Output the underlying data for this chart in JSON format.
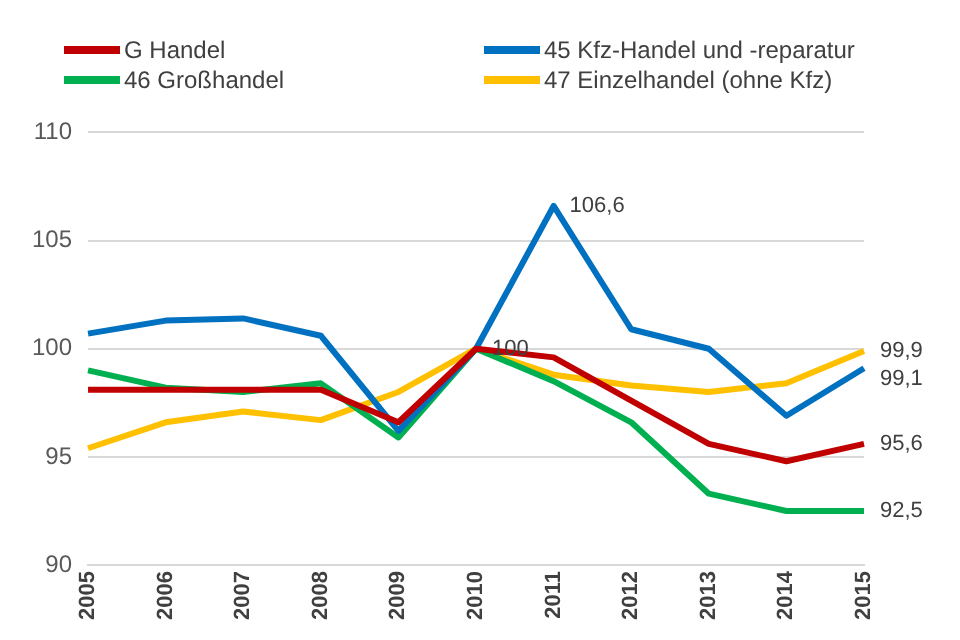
{
  "chart_data": {
    "type": "line",
    "categories": [
      "2005",
      "2006",
      "2007",
      "2008",
      "2009",
      "2010",
      "2011",
      "2012",
      "2013",
      "2014",
      "2015"
    ],
    "series": [
      {
        "name": "G Handel",
        "color": "#c00000",
        "values": [
          98.1,
          98.1,
          98.1,
          98.1,
          96.6,
          100,
          99.6,
          97.6,
          95.6,
          94.8,
          95.6
        ],
        "value_labels": [
          null,
          null,
          null,
          null,
          null,
          "100",
          null,
          null,
          null,
          null,
          "95,6"
        ]
      },
      {
        "name": "45 Kfz-Handel und -reparatur",
        "color": "#0070c0",
        "values": [
          100.7,
          101.3,
          101.4,
          100.6,
          96.2,
          100,
          106.6,
          100.9,
          100.0,
          96.9,
          99.1
        ],
        "value_labels": [
          null,
          null,
          null,
          null,
          null,
          null,
          "106,6",
          null,
          null,
          null,
          "99,1"
        ]
      },
      {
        "name": "46 Großhandel",
        "color": "#00b050",
        "values": [
          99.0,
          98.2,
          98.0,
          98.4,
          95.9,
          100,
          98.5,
          96.6,
          93.3,
          92.5,
          92.5
        ],
        "value_labels": [
          null,
          null,
          null,
          null,
          null,
          null,
          null,
          null,
          null,
          null,
          "92,5"
        ]
      },
      {
        "name": "47 Einzelhandel (ohne Kfz)",
        "color": "#ffc000",
        "values": [
          95.4,
          96.6,
          97.1,
          96.7,
          98.0,
          100,
          98.8,
          98.3,
          98.0,
          98.4,
          99.9
        ],
        "value_labels": [
          null,
          null,
          null,
          null,
          null,
          null,
          null,
          null,
          null,
          null,
          "99,9"
        ]
      }
    ],
    "ylim": [
      90,
      110
    ],
    "yticks": [
      90,
      95,
      100,
      105,
      110
    ],
    "grid": "y",
    "legend": "top",
    "marker": "none",
    "line_style": "solid"
  }
}
